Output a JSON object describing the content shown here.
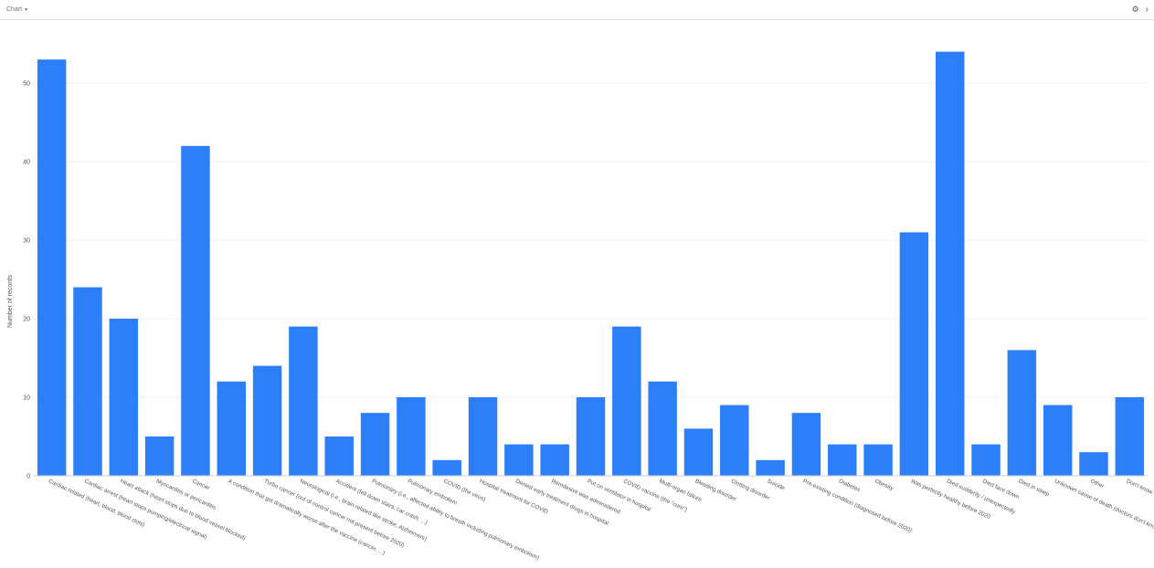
{
  "toolbar": {
    "view_label": "Chart",
    "caret_icon": "caret-down-icon",
    "settings_icon": "gear-icon",
    "expand_icon": "chevron-right-icon"
  },
  "colors": {
    "bar": "#2d7ff9",
    "grid": "#f0f0f0",
    "axis": "#cccccc",
    "text": "#555555"
  },
  "chart_data": {
    "type": "bar",
    "ylabel": "Number of records",
    "xlabel": "",
    "ylim": [
      0,
      55
    ],
    "yticks": [
      0,
      10,
      20,
      30,
      40,
      50
    ],
    "grid": true,
    "categories": [
      "Cardiac related (heart, blood, blood clots)",
      "Cardiac arrest (heart stops pumping/electrical signal)",
      "Heart attack (heart stops due to blood vessel blocked)",
      "Myocarditis or pericarditis",
      "Cancer",
      "A condition that got dramatically worse after the vaccine (cancer, ...)",
      "Turbo cancer (out of control cancer not present before 2020)",
      "Neurological (i.e., brain related like stroke, Alzheimers)",
      "Accident (fell down stairs, car crash, ...)",
      "Pulmonary (i.e., affected ability to breath including pulmonary embolism)",
      "Pulmonary embolism",
      "COVID (the virus)",
      "Hospital treatment for COVID",
      "Denied early treatment drugs in hospital",
      "Remdesivir was administered",
      "Put on ventilator in hospital",
      "COVID vaccine (the \"cure\")",
      "Multi-organ failure",
      "Bleeding disorder",
      "Clotting disorder",
      "Suicide",
      "Pre-existing condition (diagnosed before 2020)",
      "Diabetes",
      "Obesity",
      "Was perfectly healthy before 2020",
      "Died suddenly / unexpectedly",
      "Died face down",
      "Died in sleep",
      "Unknown cause of death (doctors don't know)",
      "Other",
      "Don't know"
    ],
    "values": [
      53,
      24,
      20,
      5,
      42,
      12,
      14,
      19,
      5,
      8,
      10,
      2,
      10,
      4,
      4,
      10,
      19,
      12,
      6,
      9,
      2,
      8,
      4,
      4,
      31,
      54,
      4,
      16,
      9,
      3,
      10
    ]
  }
}
